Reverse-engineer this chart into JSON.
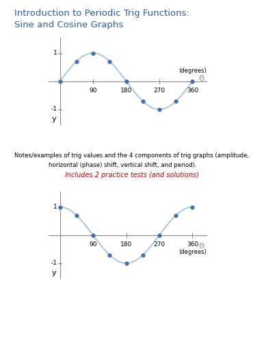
{
  "title_line1": "Introduction to Periodic Trig Functions:",
  "title_line2": "Sine and Cosine Graphs",
  "title_color": "#2E5FA3",
  "notes_line1": "Notes/examples of trig values and the 4 components of trig graphs (amplitude,",
  "notes_line2": "horizontal (phase) shift, vertical shift, and period).",
  "highlight_text": "Includes 2 practice tests (and solutions)",
  "highlight_color": "#CC0000",
  "bg_color": "#FFFFFF",
  "curve_color": "#A8C8E0",
  "axis_color": "#888888",
  "dot_color": "#4472A8",
  "dot_size": 12,
  "x_ticks": [
    90,
    180,
    270,
    360
  ],
  "sine_points_x": [
    0,
    45,
    90,
    135,
    180,
    225,
    270,
    315,
    360
  ],
  "sine_points_y": [
    0,
    0.707,
    1,
    0.707,
    0,
    -0.707,
    -1,
    -0.707,
    0
  ],
  "cosine_points_x": [
    0,
    45,
    90,
    135,
    180,
    225,
    270,
    315,
    360
  ],
  "cosine_points_y": [
    1,
    0.707,
    0,
    -0.707,
    -1,
    -0.707,
    0,
    0.707,
    1
  ],
  "theta_symbol": "Θ",
  "degrees_label": "(degrees)"
}
